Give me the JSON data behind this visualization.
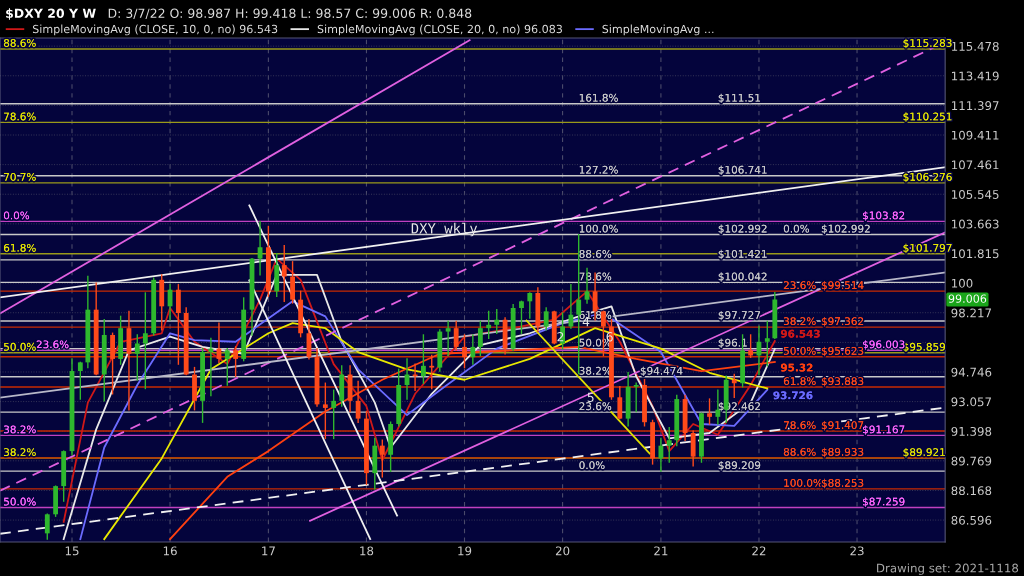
{
  "chart_data": {
    "type": "candlestick",
    "title": "$DXY 20 Y W",
    "subtitle": "D: 3/7/22 O: 98.987 H: 99.418 L: 98.57 C: 99.006 R: 0.848",
    "x": [
      "2014-10",
      "2014-11",
      "2014-12",
      "2015-01",
      "2015-02",
      "2015-03",
      "2015-04",
      "2015-05",
      "2015-06",
      "2015-07",
      "2015-08",
      "2015-09",
      "2015-10",
      "2015-11",
      "2015-12",
      "2016-01",
      "2016-02",
      "2016-03",
      "2016-04",
      "2016-05",
      "2016-06",
      "2016-07",
      "2016-08",
      "2016-09",
      "2016-10",
      "2016-11",
      "2016-12",
      "2017-01",
      "2017-02",
      "2017-03",
      "2017-04",
      "2017-05",
      "2017-06",
      "2017-07",
      "2017-08",
      "2017-09",
      "2017-10",
      "2017-11",
      "2017-12",
      "2018-01",
      "2018-02",
      "2018-03",
      "2018-04",
      "2018-05",
      "2018-06",
      "2018-07",
      "2018-08",
      "2018-09",
      "2018-10",
      "2018-11",
      "2018-12",
      "2019-01",
      "2019-02",
      "2019-03",
      "2019-04",
      "2019-05",
      "2019-06",
      "2019-07",
      "2019-08",
      "2019-09",
      "2019-10",
      "2019-11",
      "2019-12",
      "2020-01",
      "2020-02",
      "2020-03",
      "2020-04",
      "2020-05",
      "2020-06",
      "2020-07",
      "2020-08",
      "2020-09",
      "2020-10",
      "2020-11",
      "2020-12",
      "2021-01",
      "2021-02",
      "2021-03",
      "2021-04",
      "2021-05",
      "2021-06",
      "2021-07",
      "2021-08",
      "2021-09",
      "2021-10",
      "2021-11",
      "2021-12",
      "2022-01",
      "2022-02",
      "2022-03"
    ],
    "ohlc": [
      [
        85.9,
        86.9,
        85.6,
        86.9
      ],
      [
        86.9,
        88.4,
        86.8,
        88.4
      ],
      [
        88.4,
        90.3,
        87.6,
        90.3
      ],
      [
        90.3,
        95.5,
        90.1,
        94.8
      ],
      [
        94.8,
        95.3,
        93.2,
        95.3
      ],
      [
        95.3,
        100.4,
        95.0,
        98.4
      ],
      [
        98.4,
        100.0,
        94.6,
        94.6
      ],
      [
        94.6,
        97.8,
        93.1,
        96.9
      ],
      [
        96.9,
        97.0,
        93.5,
        95.5
      ],
      [
        95.5,
        98.0,
        95.2,
        97.3
      ],
      [
        97.3,
        98.3,
        92.6,
        95.8
      ],
      [
        95.8,
        96.9,
        94.3,
        96.4
      ],
      [
        96.4,
        99.4,
        93.8,
        97.0
      ],
      [
        97.0,
        100.3,
        96.9,
        100.2
      ],
      [
        100.2,
        100.5,
        97.2,
        98.6
      ],
      [
        98.6,
        99.9,
        97.8,
        99.6
      ],
      [
        99.6,
        99.9,
        95.2,
        98.2
      ],
      [
        98.2,
        98.5,
        94.6,
        94.6
      ],
      [
        94.6,
        95.0,
        92.6,
        93.1
      ],
      [
        93.1,
        96.1,
        91.9,
        95.9
      ],
      [
        95.9,
        96.7,
        93.4,
        96.1
      ],
      [
        96.1,
        97.6,
        95.3,
        95.5
      ],
      [
        95.5,
        96.1,
        94.0,
        96.0
      ],
      [
        96.0,
        96.2,
        94.5,
        95.5
      ],
      [
        95.5,
        99.1,
        95.4,
        98.4
      ],
      [
        98.4,
        101.5,
        96.9,
        101.5
      ],
      [
        101.5,
        103.8,
        100.5,
        102.2
      ],
      [
        102.2,
        103.5,
        99.2,
        99.5
      ],
      [
        99.5,
        101.8,
        99.2,
        101.1
      ],
      [
        101.1,
        102.3,
        98.9,
        100.4
      ],
      [
        100.4,
        101.3,
        98.8,
        99.0
      ],
      [
        99.0,
        99.5,
        96.8,
        97.0
      ],
      [
        97.0,
        97.8,
        95.5,
        95.6
      ],
      [
        95.6,
        96.1,
        92.8,
        92.9
      ],
      [
        92.9,
        94.1,
        91.0,
        92.7
      ],
      [
        92.7,
        93.7,
        91.0,
        93.1
      ],
      [
        93.1,
        95.1,
        92.8,
        94.6
      ],
      [
        94.6,
        95.1,
        92.5,
        93.1
      ],
      [
        93.1,
        94.2,
        91.9,
        92.1
      ],
      [
        92.1,
        92.5,
        88.5,
        89.1
      ],
      [
        89.1,
        91.0,
        88.25,
        90.6
      ],
      [
        90.6,
        90.9,
        88.9,
        90.1
      ],
      [
        90.1,
        91.9,
        89.2,
        91.8
      ],
      [
        91.8,
        94.9,
        91.7,
        94.0
      ],
      [
        94.0,
        95.5,
        93.2,
        94.6
      ],
      [
        94.6,
        95.2,
        93.7,
        94.5
      ],
      [
        94.5,
        96.9,
        94.1,
        95.1
      ],
      [
        95.1,
        95.7,
        93.8,
        95.0
      ],
      [
        95.0,
        97.2,
        94.8,
        97.1
      ],
      [
        97.1,
        97.7,
        95.7,
        97.3
      ],
      [
        97.3,
        97.7,
        96.0,
        96.2
      ],
      [
        96.2,
        96.9,
        95.0,
        95.6
      ],
      [
        95.6,
        96.9,
        95.2,
        96.2
      ],
      [
        96.2,
        97.7,
        95.7,
        97.3
      ],
      [
        97.3,
        98.3,
        96.7,
        97.5
      ],
      [
        97.5,
        98.4,
        97.0,
        97.8
      ],
      [
        97.8,
        97.9,
        95.8,
        96.1
      ],
      [
        96.1,
        98.7,
        96.0,
        98.5
      ],
      [
        98.5,
        98.9,
        97.0,
        98.9
      ],
      [
        98.9,
        99.4,
        97.9,
        99.4
      ],
      [
        99.4,
        99.7,
        97.1,
        97.4
      ],
      [
        97.4,
        98.5,
        97.2,
        98.3
      ],
      [
        98.3,
        98.3,
        96.4,
        96.4
      ],
      [
        96.4,
        98.2,
        96.1,
        97.4
      ],
      [
        97.4,
        99.9,
        97.3,
        98.1
      ],
      [
        98.1,
        102.99,
        94.65,
        99.0
      ],
      [
        99.0,
        100.9,
        98.8,
        99.5
      ],
      [
        99.5,
        100.6,
        97.8,
        98.3
      ],
      [
        98.3,
        98.3,
        95.7,
        97.4
      ],
      [
        97.4,
        97.8,
        93.2,
        93.3
      ],
      [
        93.3,
        93.9,
        92.1,
        92.1
      ],
      [
        92.1,
        94.7,
        91.7,
        93.9
      ],
      [
        93.9,
        94.1,
        92.5,
        94.0
      ],
      [
        94.0,
        94.3,
        91.7,
        91.9
      ],
      [
        91.9,
        92.0,
        89.6,
        89.9
      ],
      [
        89.9,
        91.0,
        89.21,
        90.6
      ],
      [
        90.6,
        91.6,
        89.7,
        90.9
      ],
      [
        90.9,
        93.4,
        90.6,
        93.2
      ],
      [
        93.2,
        93.4,
        90.9,
        91.3
      ],
      [
        91.3,
        91.4,
        89.5,
        90.0
      ],
      [
        90.0,
        92.4,
        89.7,
        92.4
      ],
      [
        92.4,
        93.2,
        91.8,
        92.2
      ],
      [
        92.2,
        93.7,
        91.8,
        92.6
      ],
      [
        92.6,
        94.5,
        91.9,
        94.3
      ],
      [
        94.3,
        94.6,
        93.3,
        94.1
      ],
      [
        94.1,
        96.9,
        93.9,
        96.0
      ],
      [
        96.0,
        96.9,
        95.6,
        95.7
      ],
      [
        95.7,
        97.4,
        94.6,
        96.5
      ],
      [
        96.5,
        97.7,
        95.1,
        96.7
      ],
      [
        96.7,
        99.418,
        96.7,
        99.006
      ]
    ],
    "colors": [
      "#2eb82e",
      "#2eb82e",
      "#2eb82e",
      "#2eb82e",
      "#2eb82e",
      "#2eb82e",
      "#ff4a1a",
      "#2eb82e",
      "#ff4a1a",
      "#2eb82e",
      "#ff4a1a",
      "#2eb82e",
      "#2eb82e",
      "#2eb82e",
      "#ff4a1a",
      "#2eb82e",
      "#ff4a1a",
      "#ff4a1a",
      "#ff4a1a",
      "#2eb82e",
      "#2eb82e",
      "#ff4a1a",
      "#2eb82e",
      "#ff4a1a",
      "#2eb82e",
      "#2eb82e",
      "#2eb82e",
      "#ff4a1a",
      "#2eb82e",
      "#ff4a1a",
      "#ff4a1a",
      "#ff4a1a",
      "#ff4a1a",
      "#ff4a1a",
      "#ff4a1a",
      "#2eb82e",
      "#2eb82e",
      "#ff4a1a",
      "#ff4a1a",
      "#ff4a1a",
      "#2eb82e",
      "#ff4a1a",
      "#2eb82e",
      "#2eb82e",
      "#2eb82e",
      "#ff4a1a",
      "#2eb82e",
      "#ff4a1a",
      "#2eb82e",
      "#2eb82e",
      "#ff4a1a",
      "#ff4a1a",
      "#2eb82e",
      "#2eb82e",
      "#2eb82e",
      "#2eb82e",
      "#ff4a1a",
      "#2eb82e",
      "#2eb82e",
      "#2eb82e",
      "#ff4a1a",
      "#2eb82e",
      "#ff4a1a",
      "#2eb82e",
      "#2eb82e",
      "#2eb82e",
      "#2eb82e",
      "#ff4a1a",
      "#ff4a1a",
      "#ff4a1a",
      "#ff4a1a",
      "#2eb82e",
      "#2eb82e",
      "#ff4a1a",
      "#ff4a1a",
      "#2eb82e",
      "#2eb82e",
      "#2eb82e",
      "#ff4a1a",
      "#ff4a1a",
      "#2eb82e",
      "#ff4a1a",
      "#2eb82e",
      "#2eb82e",
      "#ff4a1a",
      "#2eb82e",
      "#ff4a1a",
      "#2eb82e",
      "#2eb82e",
      "#2eb82e"
    ],
    "value_labels": [
      null,
      null,
      null,
      null,
      null,
      null,
      null,
      null,
      null,
      null,
      null,
      null,
      null,
      null,
      null,
      null,
      null,
      null,
      null,
      null,
      null,
      null,
      null,
      null,
      null,
      null,
      null,
      null,
      null,
      null,
      null,
      null,
      null,
      null,
      null,
      null,
      null,
      null,
      null,
      null,
      null,
      null,
      null,
      null,
      null,
      null,
      null,
      null,
      null,
      null,
      null,
      null,
      null,
      null,
      null,
      null,
      null,
      null,
      null,
      null,
      null,
      null,
      null,
      null,
      null,
      null,
      null,
      null,
      null,
      null,
      null,
      null,
      null,
      null,
      null,
      null,
      null,
      null,
      null,
      null,
      null,
      null,
      null,
      null,
      null,
      null,
      null,
      null,
      null,
      "99.006"
    ],
    "series": [
      {
        "type": "line",
        "name": "SimpleMovingAvg (CLOSE, 10, 0, no) 96.543",
        "color": "#d01818",
        "x": [
          "2014-12",
          "2015-03",
          "2015-07",
          "2015-12",
          "2016-01",
          "2016-04",
          "2016-08",
          "2016-12",
          "2017-02",
          "2017-05",
          "2017-09",
          "2018-01",
          "2018-03",
          "2018-07",
          "2019-01",
          "2019-07",
          "2019-12",
          "2020-04",
          "2020-08",
          "2020-12",
          "2021-02",
          "2021-05",
          "2021-08",
          "2021-12",
          "2022-03"
        ],
        "values": [
          86.5,
          93,
          96.5,
          97,
          98.5,
          96.5,
          95.2,
          99,
          101.5,
          100.2,
          95.2,
          92.8,
          89.8,
          93.5,
          96.8,
          97.3,
          97.8,
          99.5,
          96.5,
          92.8,
          90.3,
          91.8,
          91.2,
          94.0,
          96.543
        ],
        "value_labels": [
          null,
          null,
          null,
          null,
          null,
          null,
          null,
          null,
          null,
          null,
          null,
          null,
          null,
          null,
          null,
          null,
          null,
          null,
          null,
          null,
          null,
          null,
          null,
          null,
          "96.543"
        ]
      },
      {
        "type": "line",
        "name": "SimpleMovingAvg (CLOSE, 20, 0, no) 96.083",
        "color": "#e8e8e8",
        "x": [
          "2014-12",
          "2015-04",
          "2015-08",
          "2016-01",
          "2016-05",
          "2016-10",
          "2017-02",
          "2017-07",
          "2017-10",
          "2018-02",
          "2018-04",
          "2018-09",
          "2019-03",
          "2019-09",
          "2020-03",
          "2020-07",
          "2020-10",
          "2021-02",
          "2021-07",
          "2021-12",
          "2022-03"
        ],
        "values": [
          85.6,
          91.5,
          96,
          96.8,
          96.2,
          95.8,
          100.5,
          100.5,
          96.5,
          93.0,
          90.5,
          93.5,
          96.3,
          97.0,
          98.0,
          98.6,
          94.5,
          91.0,
          91.3,
          93.0,
          96.083
        ]
      },
      {
        "type": "line",
        "name": "SimpleMovingAvg ...",
        "color": "#6b6bff",
        "x": [
          "2015-02",
          "2015-05",
          "2015-09",
          "2016-01",
          "2016-04",
          "2016-09",
          "2017-04",
          "2017-08",
          "2017-12",
          "2018-06",
          "2018-10",
          "2019-05",
          "2020-01",
          "2020-06",
          "2021-01",
          "2021-06",
          "2021-10",
          "2022-02"
        ],
        "values": [
          85.6,
          90.5,
          94.0,
          97.0,
          96.6,
          96.5,
          98.9,
          98.0,
          94.9,
          92.3,
          93.7,
          96.1,
          97.6,
          98.2,
          95.9,
          91.8,
          91.7,
          93.726
        ],
        "value_labels": [
          null,
          null,
          null,
          null,
          null,
          null,
          null,
          null,
          null,
          null,
          null,
          null,
          null,
          null,
          null,
          null,
          null,
          "93.726"
        ]
      },
      {
        "type": "line",
        "color": "#e8e800",
        "x": [
          "2015-05",
          "2015-12",
          "2016-06",
          "2017-01",
          "2017-04",
          "2017-08",
          "2017-12",
          "2018-06",
          "2019-01",
          "2019-09",
          "2020-05",
          "2021-01",
          "2021-07",
          "2022-02"
        ],
        "values": [
          85.6,
          89.9,
          94.9,
          97.0,
          97.6,
          97.3,
          95.9,
          94.9,
          94.3,
          95.5,
          97.3,
          96.1,
          94.7,
          93.8
        ]
      },
      {
        "type": "line",
        "color": "#ff4010",
        "x": [
          "2016-01",
          "2016-08",
          "2017-01",
          "2017-08",
          "2018-03",
          "2018-10",
          "2019-07",
          "2020-03",
          "2020-10",
          "2021-06",
          "2022-03"
        ],
        "values": [
          85.6,
          88.9,
          90.3,
          92.5,
          94.3,
          95.8,
          96.0,
          96.2,
          95.5,
          94.8,
          95.32
        ],
        "value_labels": [
          null,
          null,
          null,
          null,
          null,
          null,
          null,
          null,
          null,
          null,
          "95.32"
        ]
      },
      {
        "type": "line",
        "color": "#e060e0",
        "x": [
          "2014-04-08",
          "2019-01-20"
        ],
        "values": [
          98.17,
          115.9
        ]
      },
      {
        "type": "line",
        "color": "#e060e0",
        "x": [
          "2017-06-05",
          "2023-11-25"
        ],
        "values": [
          86.56,
          103.13
        ]
      },
      {
        "type": "line",
        "color": "#e060e0",
        "line_style": "dashed",
        "x": [
          "2014-04-08",
          "2020-12-01",
          "2023-11-25"
        ],
        "values": [
          88.15,
          106.44,
          115.76
        ]
      },
      {
        "type": "line",
        "color": "#f0f0f0",
        "x": [
          "2014-04-08",
          "2023-11-25"
        ],
        "values": [
          99.14,
          107.29
        ]
      },
      {
        "type": "line",
        "color": "#f0f0f0",
        "line_style": "dashed",
        "x": [
          "2014-04-08",
          "2023-11-25"
        ],
        "values": [
          85.88,
          92.72
        ]
      },
      {
        "type": "line",
        "color": "#b8b8c8",
        "x": [
          "2014-04-08",
          "2023-11-25"
        ],
        "values": [
          93.28,
          100.65
        ]
      },
      {
        "type": "line",
        "color": "#f0f0f0",
        "x": [
          "2016-10-22",
          "2018-04-25"
        ],
        "values": [
          104.83,
          86.83
        ]
      },
      {
        "type": "line",
        "color": "#f0f0f0",
        "x": [
          "2016-10-22",
          "2018-01-15"
        ],
        "values": [
          100.17,
          85.6
        ]
      },
      {
        "type": "line",
        "color": "#e0e000",
        "x": [
          "2019-08-20",
          "2020-11-20"
        ],
        "values": [
          97.75,
          90.17
        ]
      }
    ],
    "ref_lines": [
      {
        "axis": "y",
        "value": 115.283,
        "color": "#9a9a1a"
      },
      {
        "axis": "y",
        "value": 110.251,
        "color": "#9a9a1a"
      },
      {
        "axis": "y",
        "value": 106.276,
        "color": "#9a9a1a"
      },
      {
        "axis": "y",
        "value": 101.797,
        "color": "#9a9a1a"
      },
      {
        "axis": "y",
        "value": 95.859,
        "color": "#9a9a1a"
      },
      {
        "axis": "y",
        "value": 89.921,
        "color": "#9a9a1a"
      },
      {
        "axis": "y",
        "value": 103.82,
        "color": "#c040c0"
      },
      {
        "axis": "y",
        "value": 96.003,
        "color": "#c040c0"
      },
      {
        "axis": "y",
        "value": 91.167,
        "color": "#c040c0"
      },
      {
        "axis": "y",
        "value": 87.259,
        "color": "#c040c0"
      },
      {
        "axis": "y",
        "value": 111.51,
        "color": "#c8c8c8"
      },
      {
        "axis": "y",
        "value": 106.741,
        "color": "#c8c8c8"
      },
      {
        "axis": "y",
        "value": 102.992,
        "color": "#c8c8c8"
      },
      {
        "axis": "y",
        "value": 101.421,
        "color": "#c8c8c8"
      },
      {
        "axis": "y",
        "value": 100.042,
        "color": "#c8c8c8"
      },
      {
        "axis": "y",
        "value": 97.727,
        "color": "#c8c8c8"
      },
      {
        "axis": "y",
        "value": 96.1,
        "color": "#c8c8c8"
      },
      {
        "axis": "y",
        "value": 94.474,
        "color": "#c8c8c8"
      },
      {
        "axis": "y",
        "value": 92.462,
        "color": "#c8c8c8"
      },
      {
        "axis": "y",
        "value": 89.209,
        "color": "#c8c8c8"
      },
      {
        "axis": "y",
        "value": 99.514,
        "color": "#c82a00"
      },
      {
        "axis": "y",
        "value": 97.362,
        "color": "#c82a00"
      },
      {
        "axis": "y",
        "value": 95.623,
        "color": "#c82a00"
      },
      {
        "axis": "y",
        "value": 93.883,
        "color": "#c82a00"
      },
      {
        "axis": "y",
        "value": 91.407,
        "color": "#c82a00"
      },
      {
        "axis": "y",
        "value": 89.933,
        "color": "#c82a00"
      },
      {
        "axis": "y",
        "value": 88.253,
        "color": "#c82a00"
      }
    ],
    "annotations": [
      "DXY wkly",
      "Drawing set: 2021-1118",
      {
        "text": "88.6%",
        "x": "2014-04-20",
        "y": 115.283
      },
      {
        "text": "78.6%",
        "x": "2014-04-20",
        "y": 110.251
      },
      {
        "text": "70.7%",
        "x": "2014-04-20",
        "y": 106.276
      },
      {
        "text": "0.0%",
        "x": "2014-04-20",
        "y": 103.82
      },
      {
        "text": "61.8%",
        "x": "2014-04-20",
        "y": 101.797
      },
      {
        "text": "23.6%",
        "x": "2014-08-20",
        "y": 96.003
      },
      {
        "text": "50.0%",
        "x": "2014-04-20",
        "y": 95.859
      },
      {
        "text": "38.2%",
        "x": "2014-04-20",
        "y": 91.167
      },
      {
        "text": "38.2%",
        "x": "2014-04-20",
        "y": 89.921
      },
      {
        "text": "50.0%",
        "x": "2014-04-20",
        "y": 87.259
      },
      {
        "text": "$115.283",
        "x": "2023-06-20",
        "y": 115.283
      },
      {
        "text": "$110.251",
        "x": "2023-06-20",
        "y": 110.251
      },
      {
        "text": "$106.276",
        "x": "2023-06-20",
        "y": 106.276
      },
      {
        "text": "$101.797",
        "x": "2023-06-20",
        "y": 101.797
      },
      {
        "text": "$95.859",
        "x": "2023-06-20",
        "y": 95.859
      },
      {
        "text": "$89.921",
        "x": "2023-06-20",
        "y": 89.921
      },
      {
        "text": "$103.82",
        "x": "2023-01-20",
        "y": 103.82
      },
      {
        "text": "$96.003",
        "x": "2023-01-20",
        "y": 96.003
      },
      {
        "text": "$91.167",
        "x": "2023-01-20",
        "y": 91.167
      },
      {
        "text": "$87.259",
        "x": "2023-01-20",
        "y": 87.259
      },
      {
        "text": "0.0%",
        "x": "2022-04-01",
        "y": 102.992
      },
      {
        "text": "23.6%",
        "x": "2022-04-01",
        "y": 99.514
      },
      {
        "text": "38.2%",
        "x": "2022-04-01",
        "y": 97.362
      },
      {
        "text": "50.0%",
        "x": "2022-04-01",
        "y": 95.623
      },
      {
        "text": "61.8%",
        "x": "2022-04-01",
        "y": 93.883
      },
      {
        "text": "78.6%",
        "x": "2022-04-01",
        "y": 91.407
      },
      {
        "text": "88.6%",
        "x": "2022-04-01",
        "y": 89.933
      },
      {
        "text": "100.0%",
        "x": "2022-04-01",
        "y": 88.253
      },
      {
        "text": "$102.992",
        "x": "2022-08-20",
        "y": 102.992
      },
      {
        "text": "$99.514",
        "x": "2022-08-20",
        "y": 99.514
      },
      {
        "text": "$97.362",
        "x": "2022-08-20",
        "y": 97.362
      },
      {
        "text": "$95.623",
        "x": "2022-08-20",
        "y": 95.623
      },
      {
        "text": "$93.883",
        "x": "2022-08-20",
        "y": 93.883
      },
      {
        "text": "$91.407",
        "x": "2022-08-20",
        "y": 91.407
      },
      {
        "text": "$89.933",
        "x": "2022-08-20",
        "y": 89.933
      },
      {
        "text": "$88.253",
        "x": "2022-08-20",
        "y": 88.253
      },
      {
        "text": "161.8%",
        "x": "2020-03-01",
        "y": 111.51
      },
      {
        "text": "127.2%",
        "x": "2020-03-01",
        "y": 106.741
      },
      {
        "text": "100.0%",
        "x": "2020-03-01",
        "y": 102.992
      },
      {
        "text": "88.6%",
        "x": "2020-03-01",
        "y": 101.421
      },
      {
        "text": "78.6%",
        "x": "2020-03-01",
        "y": 100.042
      },
      {
        "text": "61.8%",
        "x": "2020-03-01",
        "y": 97.727
      },
      {
        "text": "50.0%",
        "x": "2020-03-01",
        "y": 96.1
      },
      {
        "text": "38.2%",
        "x": "2020-03-01",
        "y": 94.474
      },
      {
        "text": "23.6%",
        "x": "2020-03-01",
        "y": 92.462
      },
      {
        "text": "0.0%",
        "x": "2020-03-01",
        "y": 89.209
      },
      {
        "text": "$111.51",
        "x": "2021-08-01",
        "y": 111.51
      },
      {
        "text": "$106.741",
        "x": "2021-08-01",
        "y": 106.741
      },
      {
        "text": "$102.992",
        "x": "2021-08-01",
        "y": 102.992
      },
      {
        "text": "$101.421",
        "x": "2021-08-01",
        "y": 101.421
      },
      {
        "text": "$100.042",
        "x": "2021-08-01",
        "y": 100.042
      },
      {
        "text": "$97.727",
        "x": "2021-08-01",
        "y": 97.727
      },
      {
        "text": "$96.1",
        "x": "2021-08-01",
        "y": 96.1
      },
      {
        "text": "$94.474",
        "x": "2020-10-15",
        "y": 94.474
      },
      {
        "text": "$92.462",
        "x": "2021-08-01",
        "y": 92.462
      },
      {
        "text": "$89.209",
        "x": "2021-08-01",
        "y": 89.209
      },
      "2",
      "4",
      "5",
      "6"
    ],
    "xlim": [
      "2014-04-08",
      "2023-11-25"
    ],
    "xticks": [
      {
        "value": "2015-01-01",
        "label": "15"
      },
      {
        "value": "2016-01-01",
        "label": "16"
      },
      {
        "value": "2017-01-01",
        "label": "17"
      },
      {
        "value": "2018-01-01",
        "label": "18"
      },
      {
        "value": "2019-01-01",
        "label": "19"
      },
      {
        "value": "2020-01-01",
        "label": "20"
      },
      {
        "value": "2021-01-01",
        "label": "21"
      },
      {
        "value": "2022-01-01",
        "label": "22"
      },
      {
        "value": "2023-01-01",
        "label": "23"
      }
    ],
    "log": true,
    "ylim": [
      85.45,
      116.05
    ],
    "yticks": [
      86.596,
      88.168,
      89.769,
      91.398,
      93.057,
      94.746,
      {
        "value": 96.462,
        "label": null
      },
      98.217,
      100,
      101.815,
      103.663,
      105.545,
      107.461,
      109.411,
      111.397,
      113.419,
      115.478
    ],
    "grid": true,
    "legend": "top"
  }
}
